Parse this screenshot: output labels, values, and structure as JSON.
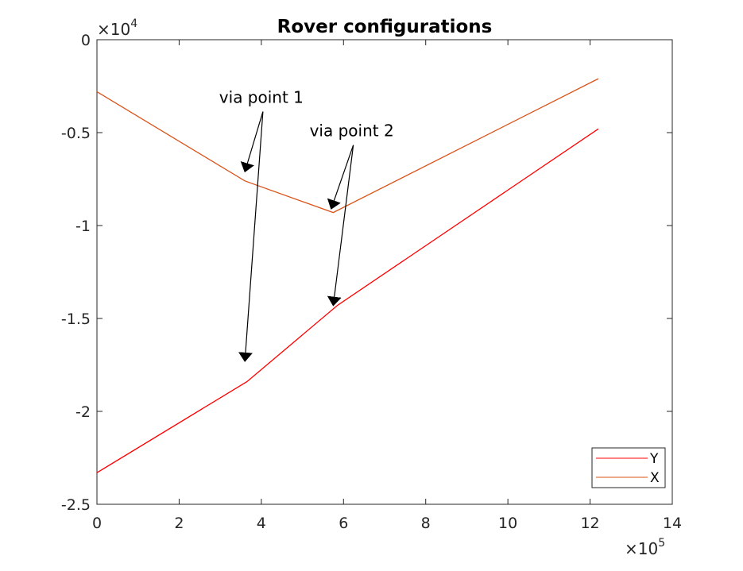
{
  "chart_data": {
    "type": "line",
    "title": "Rover configurations",
    "xlabel": "",
    "ylabel": "",
    "xlim": [
      0,
      14
    ],
    "ylim": [
      -2.5,
      0
    ],
    "x_exponent": {
      "base": "×10",
      "power": "5"
    },
    "y_exponent": {
      "base": "×10",
      "power": "4"
    },
    "x_ticks": [
      "0",
      "2",
      "4",
      "6",
      "8",
      "10",
      "12",
      "14"
    ],
    "y_ticks": [
      "0",
      "-0.5",
      "-1",
      "-1.5",
      "-2",
      "-2.5"
    ],
    "x_tick_values": [
      0,
      2,
      4,
      6,
      8,
      10,
      12,
      14
    ],
    "y_tick_values": [
      0,
      -0.5,
      -1,
      -1.5,
      -2,
      -2.5
    ],
    "series": [
      {
        "name": "Y",
        "color": "#ff0000",
        "x": [
          0,
          3.65,
          5.85,
          12.2
        ],
        "y": [
          -2.33,
          -1.84,
          -1.43,
          -0.48
        ]
      },
      {
        "name": "X",
        "color": "#d95319",
        "x": [
          0,
          3.6,
          5.75,
          12.2
        ],
        "y": [
          -0.28,
          -0.76,
          -0.93,
          -0.21
        ]
      }
    ],
    "annotations": [
      {
        "text": "via point 1",
        "text_at": [
          4.0,
          -0.34
        ],
        "arrows_to": [
          [
            3.6,
            -0.71
          ],
          [
            3.6,
            -1.73
          ]
        ]
      },
      {
        "text": "via point 2",
        "text_at": [
          6.2,
          -0.52
        ],
        "arrows_to": [
          [
            5.7,
            -0.91
          ],
          [
            5.75,
            -1.43
          ]
        ]
      }
    ],
    "legend": {
      "position": "bottom-right",
      "entries": [
        "Y",
        "X"
      ]
    },
    "grid": false,
    "box": true
  }
}
